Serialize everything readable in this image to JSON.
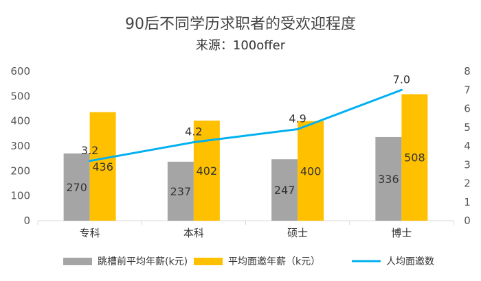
{
  "chart_data": {
    "type": "bar",
    "title": "90后不同学历求职者的受欢迎程度",
    "subtitle": "来源：100offer",
    "categories": [
      "专科",
      "本科",
      "硕士",
      "博士"
    ],
    "series": [
      {
        "name": "跳槽前平均年薪(k元)",
        "kind": "bar",
        "axis": "left",
        "color": "#a5a5a5",
        "values": [
          270,
          237,
          247,
          336
        ]
      },
      {
        "name": "平均面邀年薪（k元）",
        "kind": "bar",
        "axis": "left",
        "color": "#ffc000",
        "values": [
          436,
          402,
          400,
          508
        ]
      },
      {
        "name": "人均面邀数",
        "kind": "line",
        "axis": "right",
        "color": "#00b0f0",
        "values": [
          3.2,
          4.2,
          4.9,
          7.0
        ]
      }
    ],
    "y_left": {
      "min": 0,
      "max": 600,
      "step": 100,
      "ticks": [
        "0",
        "100",
        "200",
        "300",
        "400",
        "500",
        "600"
      ]
    },
    "y_right": {
      "min": 0,
      "max": 8,
      "step": 1,
      "ticks": [
        "0",
        "1",
        "2",
        "3",
        "4",
        "5",
        "6",
        "7",
        "8"
      ]
    },
    "line_labels": [
      "3.2",
      "4.2",
      "4.9",
      "7.0"
    ],
    "grid": false,
    "legend_position": "bottom"
  }
}
